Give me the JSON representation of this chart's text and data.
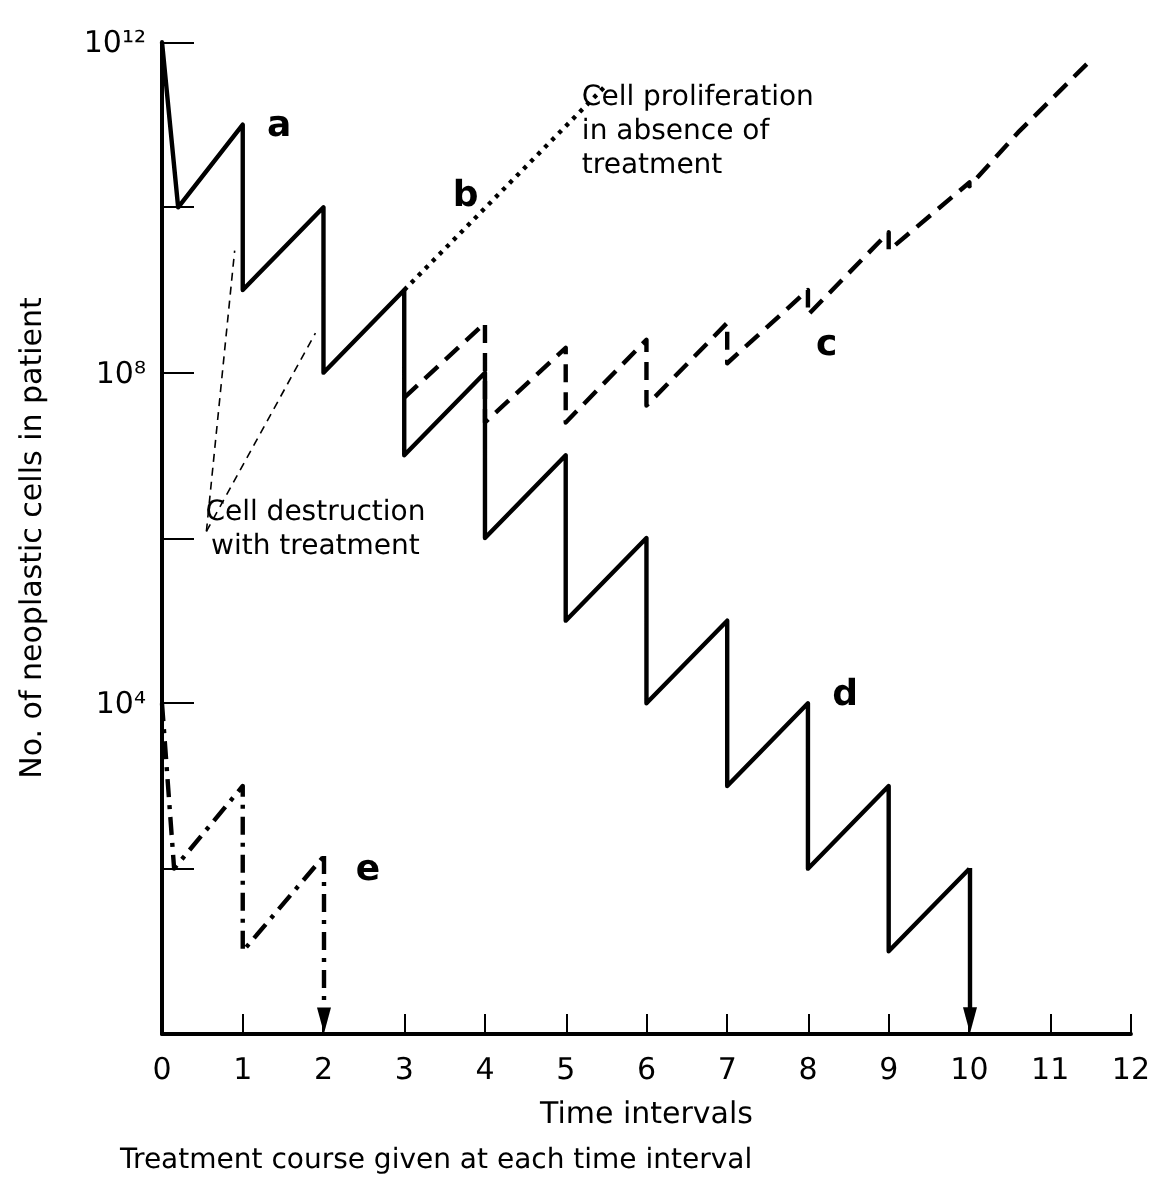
{
  "chart_data": {
    "type": "line",
    "xlabel": "Time intervals",
    "ylabel": "No. of neoplastic cells in patient",
    "annotations": [
      "a",
      "b",
      "c",
      "d",
      "e",
      "Cell proliferation in absence of treatment",
      {
        "text": "Cell destruction with treatment",
        "x": 0.9,
        "y": 3000000000.0
      },
      "Treatment course given at each time interval"
    ],
    "series": [
      {
        "color": "#000000",
        "line_style": "solid",
        "x": [
          0,
          0.2,
          1,
          1,
          2,
          2,
          3,
          3,
          4,
          4,
          5,
          5,
          6,
          6,
          7,
          7,
          8,
          8,
          9,
          9,
          10
        ],
        "values": [
          1000000000000.0,
          10000000000.0,
          100000000000.0,
          1000000000.0,
          10000000000.0,
          100000000.0,
          1000000000.0,
          10000000.0,
          100000000.0,
          1000000.0,
          10000000.0,
          100000.0,
          1000000.0,
          10000.0,
          100000.0,
          1000.0,
          10000.0,
          100,
          1000,
          10,
          100
        ]
      },
      {
        "color": "#000000",
        "line_style": "dotted",
        "x": [
          3,
          5.5
        ],
        "values": [
          1000000000.0,
          300000000000.0
        ]
      },
      {
        "color": "#000000",
        "line_style": "dashed",
        "x": [
          3,
          4,
          4,
          5,
          5,
          6,
          6,
          7,
          7,
          8,
          8,
          9,
          9,
          10,
          10,
          10.6,
          11.5
        ],
        "values": [
          50000000.0,
          400000000.0,
          25000000.0,
          200000000.0,
          25000000.0,
          250000000.0,
          40000000.0,
          400000000.0,
          130000000.0,
          1000000000.0,
          500000000.0,
          5000000000.0,
          3000000000.0,
          20000000000.0,
          18000000000.0,
          80000000000.0,
          600000000000.0
        ]
      },
      {
        "color": "#000000",
        "line_style": "dashdot",
        "x": [
          0,
          0.15,
          1,
          1,
          2
        ],
        "values": [
          10000.0,
          100,
          1000,
          10,
          140
        ]
      }
    ],
    "xlim": [
      0,
      12
    ],
    "xticks": [
      0,
      1,
      2,
      3,
      4,
      5,
      6,
      7,
      8,
      9,
      10,
      11,
      12
    ],
    "ylim": [
      1,
      1000000000000.0
    ],
    "log": "y",
    "yticks": [
      {
        "value": 100,
        "label": null
      },
      {
        "value": 10000.0,
        "label": "10⁴"
      },
      {
        "value": 1000000.0,
        "label": null
      },
      {
        "value": 100000000.0,
        "label": "10⁸"
      },
      {
        "value": 10000000000.0,
        "label": null
      },
      {
        "value": 1000000000000.0,
        "label": "10¹²"
      }
    ],
    "grid": false,
    "marker": "none"
  }
}
